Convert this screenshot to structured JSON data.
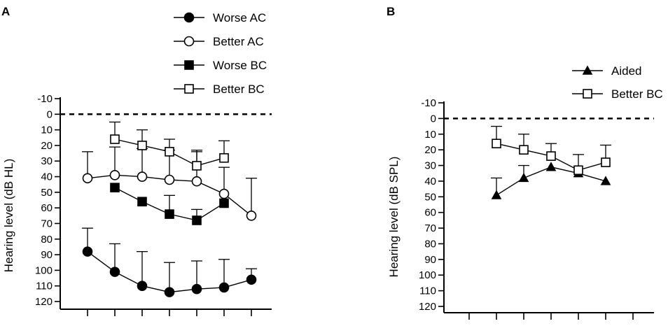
{
  "figure": {
    "title": "",
    "colors": {
      "ink": "#000000",
      "background": "#ffffff"
    }
  },
  "chart_data": [
    {
      "panel": "A",
      "type": "line",
      "ylabel": "Hearing level (dB HL)",
      "xlabel": "",
      "ylim": [
        -10,
        120
      ],
      "y_inverted": true,
      "yticks": [
        -10,
        0,
        10,
        20,
        30,
        40,
        50,
        60,
        70,
        80,
        90,
        100,
        110,
        120
      ],
      "x_tick_count": 7,
      "x_tick_labels": [],
      "reference_line": {
        "y": 0,
        "style": "dashed"
      },
      "legend": [
        "Worse AC",
        "Better AC",
        "Worse BC",
        "Better BC"
      ],
      "series": [
        {
          "name": "Worse AC",
          "marker": "circle-filled",
          "x": [
            1,
            2,
            3,
            4,
            5,
            6,
            7
          ],
          "values": [
            88,
            101,
            110,
            114,
            112,
            111,
            106
          ],
          "error_upper": [
            73,
            83,
            88,
            95,
            94,
            93,
            99
          ]
        },
        {
          "name": "Better AC",
          "marker": "circle-open",
          "x": [
            1,
            2,
            3,
            4,
            5,
            6,
            7
          ],
          "values": [
            41,
            39,
            40,
            42,
            43,
            51,
            65
          ],
          "error_upper": [
            24,
            21,
            22,
            23,
            24,
            34,
            41
          ]
        },
        {
          "name": "Worse BC",
          "marker": "square-filled",
          "x": [
            2,
            3,
            4,
            5,
            6
          ],
          "values": [
            47,
            56,
            64,
            68,
            57
          ],
          "error_upper": [
            null,
            null,
            52,
            61,
            null
          ]
        },
        {
          "name": "Better BC",
          "marker": "square-open",
          "x": [
            2,
            3,
            4,
            5,
            6
          ],
          "values": [
            16,
            20,
            24,
            33,
            28
          ],
          "error_upper": [
            5,
            10,
            16,
            23,
            17
          ]
        }
      ]
    },
    {
      "panel": "B",
      "type": "line",
      "ylabel": "Hearing level (dB SPL)",
      "xlabel": "",
      "ylim": [
        -10,
        120
      ],
      "y_inverted": true,
      "yticks": [
        -10,
        0,
        10,
        20,
        30,
        40,
        50,
        60,
        70,
        80,
        90,
        100,
        110,
        120
      ],
      "x_tick_count": 7,
      "x_tick_labels": [],
      "reference_line": {
        "y": 0,
        "style": "dashed"
      },
      "legend": [
        "Aided",
        "Better BC"
      ],
      "series": [
        {
          "name": "Aided",
          "marker": "triangle-filled",
          "x": [
            2,
            3,
            4,
            5,
            6
          ],
          "values": [
            49,
            38,
            31,
            35,
            40
          ],
          "error_upper": [
            38,
            30,
            null,
            null,
            null
          ]
        },
        {
          "name": "Better BC",
          "marker": "square-open",
          "x": [
            2,
            3,
            4,
            5,
            6
          ],
          "values": [
            16,
            20,
            24,
            33,
            28
          ],
          "error_upper": [
            5,
            10,
            16,
            23,
            17
          ]
        }
      ]
    }
  ]
}
